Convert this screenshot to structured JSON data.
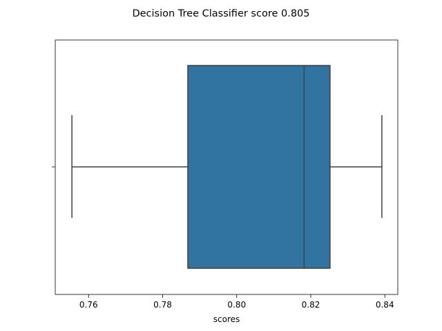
{
  "chart_data": {
    "type": "box",
    "title": "Decision Tree Classifier score 0.805",
    "xlabel": "scores",
    "ylabel": "",
    "xlim": [
      0.751,
      0.8435
    ],
    "xticks": [
      {
        "value": 0.76,
        "label": "0.76"
      },
      {
        "value": 0.78,
        "label": "0.78"
      },
      {
        "value": 0.8,
        "label": "0.80"
      },
      {
        "value": 0.82,
        "label": "0.82"
      },
      {
        "value": 0.84,
        "label": "0.84"
      }
    ],
    "box": {
      "whisker_low": 0.7555,
      "q1": 0.7868,
      "median": 0.8182,
      "q3": 0.8252,
      "whisker_high": 0.8392
    },
    "grid": false,
    "colors": {
      "box_fill": "#3274a1",
      "line": "#3f3f3f",
      "axes": "#000000"
    }
  }
}
